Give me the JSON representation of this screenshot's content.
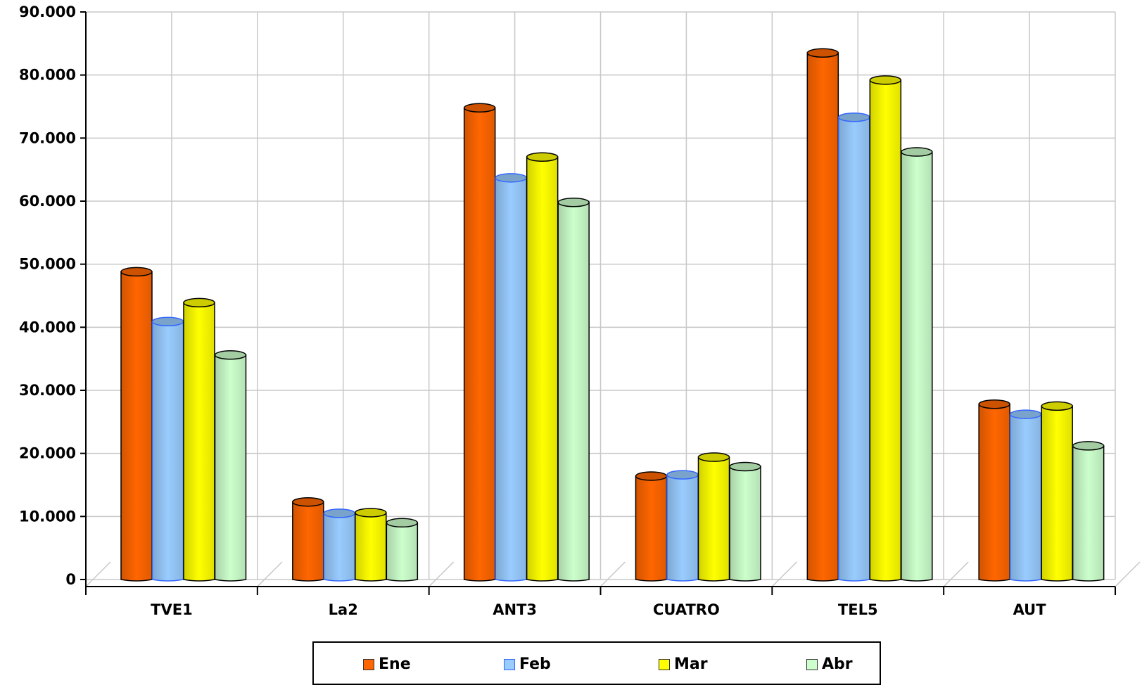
{
  "chart_data": {
    "type": "bar",
    "categories": [
      "TVE1",
      "La2",
      "ANT3",
      "CUATRO",
      "TEL5",
      "AUT"
    ],
    "series": [
      {
        "name": "Ene",
        "color": "#FF6600",
        "values": [
          48800,
          12300,
          74800,
          16400,
          83500,
          27800
        ]
      },
      {
        "name": "Feb",
        "color": "#99CCFF",
        "values": [
          40900,
          10500,
          63700,
          16600,
          73300,
          26200
        ]
      },
      {
        "name": "Mar",
        "color": "#FFFF00",
        "values": [
          43900,
          10600,
          67000,
          19400,
          79200,
          27500
        ]
      },
      {
        "name": "Abr",
        "color": "#CCFFCC",
        "values": [
          35600,
          9000,
          59800,
          17900,
          67800,
          21200
        ]
      }
    ],
    "yticks": [
      "0",
      "10.000",
      "20.000",
      "30.000",
      "40.000",
      "50.000",
      "60.000",
      "70.000",
      "80.000",
      "90.000"
    ],
    "ylim": [
      0,
      90000
    ],
    "grid": true,
    "legend_position": "bottom",
    "title": "",
    "xlabel": "",
    "ylabel": ""
  }
}
